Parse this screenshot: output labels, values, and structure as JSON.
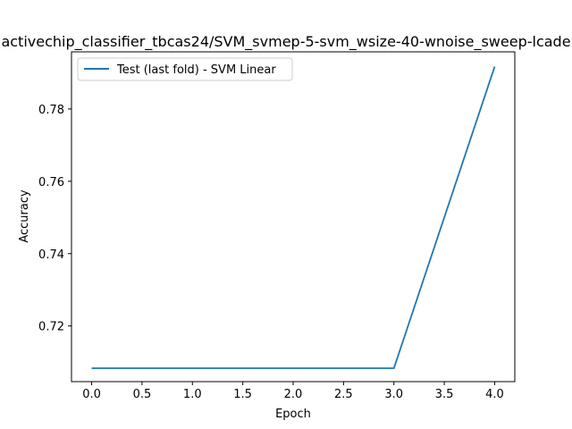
{
  "chart_data": {
    "type": "line",
    "title": "activechip_classifier_tbcas24/SVM_svmep-5-svm_wsize-40-wnoise_sweep-lcade",
    "xlabel": "Epoch",
    "ylabel": "Accuracy",
    "x": [
      0,
      1,
      2,
      3,
      4
    ],
    "xlim": [
      -0.2,
      4.2
    ],
    "ylim": [
      0.7046,
      0.7958
    ],
    "xticks": [
      0.0,
      0.5,
      1.0,
      1.5,
      2.0,
      2.5,
      3.0,
      3.5,
      4.0
    ],
    "xtick_labels": [
      "0.0",
      "0.5",
      "1.0",
      "1.5",
      "2.0",
      "2.5",
      "3.0",
      "3.5",
      "4.0"
    ],
    "yticks": [
      0.72,
      0.74,
      0.76,
      0.78
    ],
    "ytick_labels": [
      "0.72",
      "0.74",
      "0.76",
      "0.78"
    ],
    "grid": false,
    "legend_position": "upper left",
    "series": [
      {
        "name": "Test (last fold) - SVM Linear",
        "color": "#1f77b4",
        "values": [
          0.7083,
          0.7083,
          0.7083,
          0.7083,
          0.7917
        ]
      }
    ]
  }
}
